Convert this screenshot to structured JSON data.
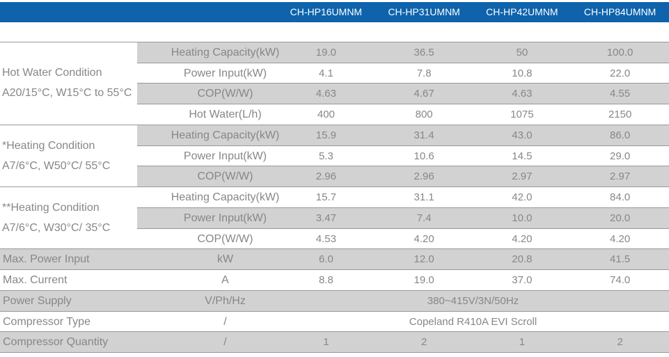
{
  "colors": {
    "header_bg": "#0e63ac",
    "header_text": "#ffffff",
    "stripe_bg": "#d2d2d2",
    "white_bg": "#ffffff",
    "line": "#989898",
    "text": "#85878a"
  },
  "header": {
    "models": [
      "CH-HP16UMNM",
      "CH-HP31UMNM",
      "CH-HP42UMNM",
      "CH-HP84UMNM"
    ]
  },
  "groups": [
    {
      "label_lines": [
        "Hot Water Condition",
        "A20/15°C, W15°C to 55°C"
      ],
      "rows": [
        {
          "param": "Heating Capacity(kW)",
          "values": [
            "19.0",
            "36.5",
            "50",
            "100.0"
          ]
        },
        {
          "param": "Power Input(kW)",
          "values": [
            "4.1",
            "7.8",
            "10.8",
            "22.0"
          ]
        },
        {
          "param": "COP(W/W)",
          "values": [
            "4.63",
            "4.67",
            "4.63",
            "4.55"
          ]
        },
        {
          "param": "Hot Water(L/h)",
          "values": [
            "400",
            "800",
            "1075",
            "2150"
          ]
        }
      ]
    },
    {
      "label_lines": [
        "*Heating Condition",
        "A7/6°C, W50°C/ 55°C"
      ],
      "rows": [
        {
          "param": "Heating Capacity(kW)",
          "values": [
            "15.9",
            "31.4",
            "43.0",
            "86.0"
          ]
        },
        {
          "param": "Power Input(kW)",
          "values": [
            "5.3",
            "10.6",
            "14.5",
            "29.0"
          ]
        },
        {
          "param": "COP(W/W)",
          "values": [
            "2.96",
            "2.96",
            "2.97",
            "2.97"
          ]
        }
      ]
    },
    {
      "label_lines": [
        "**Heating Condition",
        "A7/6°C, W30°C/ 35°C"
      ],
      "rows": [
        {
          "param": "Heating Capacity(kW)",
          "values": [
            "15.7",
            "31.1",
            "42.0",
            "84.0"
          ]
        },
        {
          "param": "Power Input(kW)",
          "values": [
            "3.47",
            "7.4",
            "10.0",
            "20.0"
          ]
        },
        {
          "param": "COP(W/W)",
          "values": [
            "4.53",
            "4.20",
            "4.20",
            "4.20"
          ]
        }
      ]
    }
  ],
  "rows": [
    {
      "label": "Max. Power Input",
      "unit": "kW",
      "values": [
        "6.0",
        "12.0",
        "20.8",
        "41.5"
      ]
    },
    {
      "label": "Max. Current",
      "unit": "A",
      "values": [
        "8.8",
        "19.0",
        "37.0",
        "74.0"
      ]
    },
    {
      "label": "Power Supply",
      "unit": "V/Ph/Hz",
      "span_value": "380~415V/3N/50Hz"
    },
    {
      "label": "Compressor Type",
      "unit": "/",
      "span_value": "Copeland R410A EVI Scroll"
    },
    {
      "label": "Compressor Quantity",
      "unit": "/",
      "values": [
        "1",
        "2",
        "1",
        "2"
      ]
    }
  ]
}
